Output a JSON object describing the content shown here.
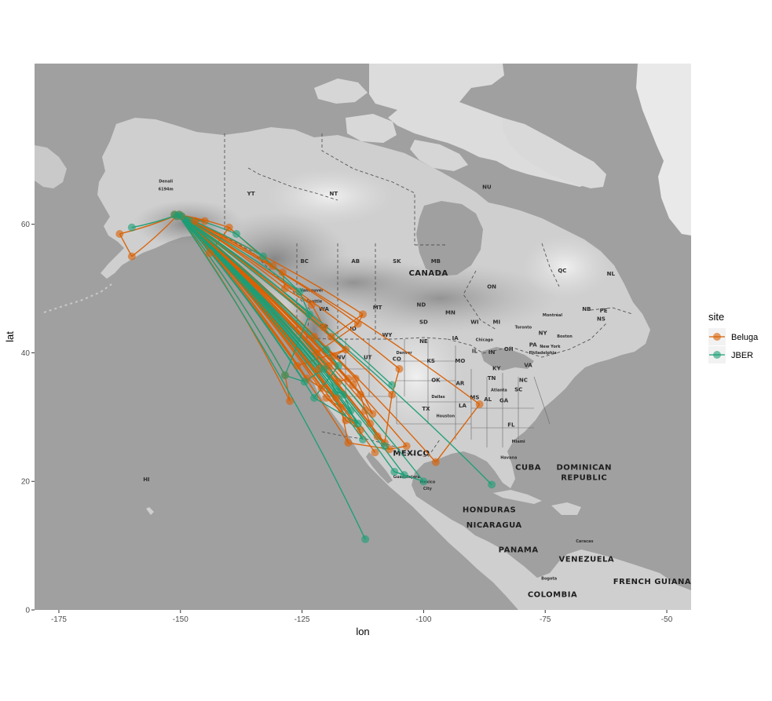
{
  "chart_data": {
    "type": "map",
    "xlabel": "lon",
    "ylabel": "lat",
    "xlim": [
      -180,
      -45
    ],
    "ylim": [
      0,
      85
    ],
    "x_ticks": [
      -175,
      -150,
      -125,
      -100,
      -75,
      -50
    ],
    "y_ticks": [
      0,
      20,
      40,
      60
    ],
    "x_tick_labels": [
      "-175",
      "-150",
      "-125",
      "-100",
      "-75",
      "-50"
    ],
    "y_tick_labels": [
      "0",
      "20",
      "40",
      "60"
    ],
    "legend": {
      "title": "site",
      "position": "right",
      "items": [
        {
          "label": "Beluga",
          "color": "#D95F02"
        },
        {
          "label": "JBER",
          "color": "#1B9E77"
        }
      ]
    },
    "origin": {
      "lon": -150.5,
      "lat": 61.5
    },
    "series": [
      {
        "name": "Beluga",
        "color": "#D95F02",
        "points": [
          [
            -162.5,
            58.5
          ],
          [
            -160.0,
            55.0
          ],
          [
            -144.0,
            55.5
          ],
          [
            -140.0,
            59.5
          ],
          [
            -131.0,
            53.5
          ],
          [
            -129.0,
            52.5
          ],
          [
            -128.5,
            50.0
          ],
          [
            -123.0,
            47.5
          ],
          [
            -120.5,
            44.0
          ],
          [
            -119.0,
            42.5
          ],
          [
            -112.5,
            46.0
          ],
          [
            -113.5,
            44.5
          ],
          [
            -122.0,
            40.0
          ],
          [
            -121.5,
            37.5
          ],
          [
            -119.5,
            38.0
          ],
          [
            -117.5,
            35.5
          ],
          [
            -115.5,
            36.0
          ],
          [
            -114.5,
            35.0
          ],
          [
            -113.0,
            33.5
          ],
          [
            -112.0,
            31.0
          ],
          [
            -111.0,
            29.0
          ],
          [
            -109.5,
            27.0
          ],
          [
            -108.0,
            26.0
          ],
          [
            -106.5,
            33.5
          ],
          [
            -105.0,
            37.5
          ],
          [
            -110.0,
            24.5
          ],
          [
            -97.5,
            23.0
          ],
          [
            -88.5,
            32.0
          ],
          [
            -127.5,
            32.5
          ],
          [
            -128.5,
            36.5
          ],
          [
            -116.0,
            29.5
          ],
          [
            -113.0,
            28.0
          ],
          [
            -120.0,
            33.0
          ],
          [
            -117.0,
            31.5
          ],
          [
            -115.5,
            26.0
          ],
          [
            -107.0,
            25.0
          ],
          [
            -103.5,
            25.5
          ],
          [
            -124.0,
            36.0
          ],
          [
            -121.0,
            34.5
          ],
          [
            -118.0,
            33.0
          ],
          [
            -147.0,
            60.5
          ],
          [
            -145.0,
            60.5
          ],
          [
            -114.0,
            36.0
          ],
          [
            -110.5,
            30.5
          ],
          [
            -122.5,
            42.5
          ],
          [
            -118.5,
            39.5
          ],
          [
            -116.0,
            40.5
          ],
          [
            -126.0,
            38.0
          ]
        ]
      },
      {
        "name": "JBER",
        "color": "#1B9E77",
        "points": [
          [
            -160.0,
            59.5
          ],
          [
            -138.5,
            58.5
          ],
          [
            -133.0,
            55.0
          ],
          [
            -125.5,
            49.5
          ],
          [
            -123.5,
            46.0
          ],
          [
            -128.5,
            36.5
          ],
          [
            -124.5,
            35.5
          ],
          [
            -120.5,
            37.5
          ],
          [
            -118.0,
            34.0
          ],
          [
            -116.5,
            33.5
          ],
          [
            -115.0,
            31.0
          ],
          [
            -112.5,
            26.5
          ],
          [
            -112.0,
            11.0
          ],
          [
            -106.5,
            35.0
          ],
          [
            -104.0,
            21.0
          ],
          [
            -106.0,
            21.5
          ],
          [
            -100.0,
            20.0
          ],
          [
            -86.0,
            19.5
          ],
          [
            -108.0,
            25.5
          ],
          [
            -120.0,
            40.5
          ],
          [
            -117.5,
            38.0
          ],
          [
            -122.5,
            33.0
          ],
          [
            -113.5,
            29.0
          ]
        ]
      }
    ]
  },
  "map_labels": {
    "places": [
      {
        "text": "Denali",
        "lon": -153.0,
        "lat": 66.5
      },
      {
        "text": "6194m",
        "lon": -153.0,
        "lat": 65.3
      },
      {
        "text": "YT",
        "lon": -135.5,
        "lat": 64.5
      },
      {
        "text": "NT",
        "lon": -118.5,
        "lat": 64.5
      },
      {
        "text": "NU",
        "lon": -87.0,
        "lat": 65.5
      },
      {
        "text": "BC",
        "lon": -124.5,
        "lat": 54.0
      },
      {
        "text": "AB",
        "lon": -114.0,
        "lat": 54.0
      },
      {
        "text": "SK",
        "lon": -105.5,
        "lat": 54.0
      },
      {
        "text": "MB",
        "lon": -97.5,
        "lat": 54.0
      },
      {
        "text": "ON",
        "lon": -86.0,
        "lat": 50.0
      },
      {
        "text": "QC",
        "lon": -71.5,
        "lat": 52.5
      },
      {
        "text": "NL",
        "lon": -61.5,
        "lat": 52.0
      },
      {
        "text": "Vancouver",
        "lon": -123.0,
        "lat": 49.5
      },
      {
        "text": "Seattle",
        "lon": -122.5,
        "lat": 47.8
      },
      {
        "text": "WA",
        "lon": -120.5,
        "lat": 46.5
      },
      {
        "text": "OR",
        "lon": -120.5,
        "lat": 43.8
      },
      {
        "text": "ID",
        "lon": -114.5,
        "lat": 43.5
      },
      {
        "text": "MT",
        "lon": -109.5,
        "lat": 46.8
      },
      {
        "text": "WY",
        "lon": -107.5,
        "lat": 42.5
      },
      {
        "text": "ND",
        "lon": -100.5,
        "lat": 47.2
      },
      {
        "text": "SD",
        "lon": -100.0,
        "lat": 44.5
      },
      {
        "text": "NE",
        "lon": -100.0,
        "lat": 41.5
      },
      {
        "text": "MN",
        "lon": -94.5,
        "lat": 46.0
      },
      {
        "text": "WI",
        "lon": -89.5,
        "lat": 44.5
      },
      {
        "text": "MI",
        "lon": -85.0,
        "lat": 44.5
      },
      {
        "text": "IA",
        "lon": -93.5,
        "lat": 42.0
      },
      {
        "text": "IL",
        "lon": -89.5,
        "lat": 40.0
      },
      {
        "text": "IN",
        "lon": -86.0,
        "lat": 39.8
      },
      {
        "text": "OH",
        "lon": -82.5,
        "lat": 40.3
      },
      {
        "text": "PA",
        "lon": -77.5,
        "lat": 41.0
      },
      {
        "text": "NY",
        "lon": -75.5,
        "lat": 42.8
      },
      {
        "text": "NB",
        "lon": -66.5,
        "lat": 46.5
      },
      {
        "text": "PE",
        "lon": -63.0,
        "lat": 46.3
      },
      {
        "text": "NS",
        "lon": -63.5,
        "lat": 45.0
      },
      {
        "text": "NV",
        "lon": -117.0,
        "lat": 39.0
      },
      {
        "text": "UT",
        "lon": -111.5,
        "lat": 39.0
      },
      {
        "text": "CO",
        "lon": -105.5,
        "lat": 38.8
      },
      {
        "text": "KS",
        "lon": -98.5,
        "lat": 38.5
      },
      {
        "text": "MO",
        "lon": -92.5,
        "lat": 38.5
      },
      {
        "text": "KY",
        "lon": -85.0,
        "lat": 37.3
      },
      {
        "text": "VA",
        "lon": -78.5,
        "lat": 37.8
      },
      {
        "text": "TN",
        "lon": -86.0,
        "lat": 35.8
      },
      {
        "text": "NC",
        "lon": -79.5,
        "lat": 35.5
      },
      {
        "text": "OK",
        "lon": -97.5,
        "lat": 35.5
      },
      {
        "text": "AR",
        "lon": -92.5,
        "lat": 35.0
      },
      {
        "text": "SC",
        "lon": -80.5,
        "lat": 34.0
      },
      {
        "text": "MS",
        "lon": -89.5,
        "lat": 32.8
      },
      {
        "text": "AL",
        "lon": -86.8,
        "lat": 32.5
      },
      {
        "text": "GA",
        "lon": -83.5,
        "lat": 32.3
      },
      {
        "text": "TX",
        "lon": -99.5,
        "lat": 31.0
      },
      {
        "text": "LA",
        "lon": -92.0,
        "lat": 31.5
      },
      {
        "text": "FL",
        "lon": -82.0,
        "lat": 28.5
      },
      {
        "text": "Denver",
        "lon": -104.0,
        "lat": 39.8
      },
      {
        "text": "Dallas",
        "lon": -97.0,
        "lat": 33.0
      },
      {
        "text": "Houston",
        "lon": -95.5,
        "lat": 30.0
      },
      {
        "text": "Atlanta",
        "lon": -84.5,
        "lat": 34.0
      },
      {
        "text": "Miami",
        "lon": -80.5,
        "lat": 26.0
      },
      {
        "text": "Havana",
        "lon": -82.5,
        "lat": 23.5
      },
      {
        "text": "Chicago",
        "lon": -87.5,
        "lat": 41.8
      },
      {
        "text": "Toronto",
        "lon": -79.5,
        "lat": 43.8
      },
      {
        "text": "Montréal",
        "lon": -73.5,
        "lat": 45.7
      },
      {
        "text": "Boston",
        "lon": -71.0,
        "lat": 42.4
      },
      {
        "text": "New York",
        "lon": -74.0,
        "lat": 40.8
      },
      {
        "text": "Philadelphia",
        "lon": -75.5,
        "lat": 39.8
      },
      {
        "text": "Guadalajara",
        "lon": -103.5,
        "lat": 20.5
      },
      {
        "text": "Mexico",
        "lon": -99.2,
        "lat": 19.7
      },
      {
        "text": "City",
        "lon": -99.2,
        "lat": 18.7
      },
      {
        "text": "Caracas",
        "lon": -66.9,
        "lat": 10.5
      },
      {
        "text": "Bogota",
        "lon": -74.2,
        "lat": 4.7
      },
      {
        "text": "HI",
        "lon": -157.0,
        "lat": 20.0
      }
    ],
    "countries": [
      {
        "text": "CANADA",
        "lon": -99.0,
        "lat": 52.0
      },
      {
        "text": "MEXICO",
        "lon": -102.5,
        "lat": 24.0
      },
      {
        "text": "CUBA",
        "lon": -78.5,
        "lat": 21.8
      },
      {
        "text": "DOMINICAN",
        "lon": -67.0,
        "lat": 21.8
      },
      {
        "text": "REPUBLIC",
        "lon": -67.0,
        "lat": 20.2
      },
      {
        "text": "HONDURAS",
        "lon": -86.5,
        "lat": 15.2
      },
      {
        "text": "NICARAGUA",
        "lon": -85.5,
        "lat": 12.8
      },
      {
        "text": "PANAMA",
        "lon": -80.5,
        "lat": 9.0
      },
      {
        "text": "VENEZUELA",
        "lon": -66.5,
        "lat": 7.5
      },
      {
        "text": "COLOMBIA",
        "lon": -73.5,
        "lat": 2.0
      },
      {
        "text": "FRENCH GUIANA",
        "lon": -53.0,
        "lat": 4.0
      }
    ]
  }
}
